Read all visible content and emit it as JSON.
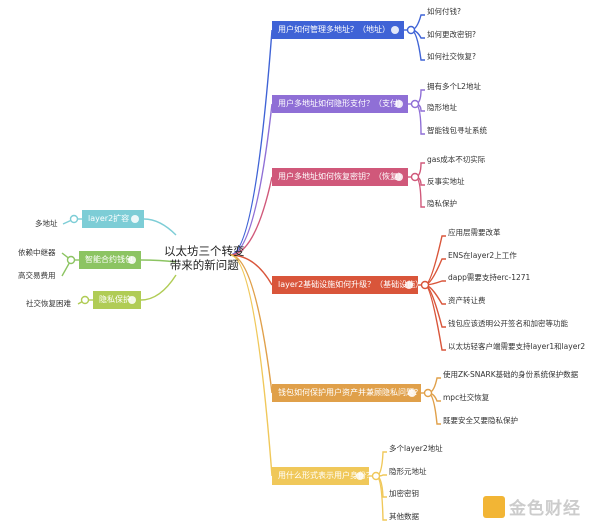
{
  "center": {
    "line1": "以太坊三个转变",
    "line2": "带来的新问题"
  },
  "right": [
    {
      "label": "用户如何管理多地址？（地址）",
      "color": "#3f63d6",
      "children": [
        "如何付钱?",
        "如何更改密钥?",
        "如何社交恢复?"
      ]
    },
    {
      "label": "用户多地址如何隐形支付？（支付）",
      "color": "#8f6fd6",
      "children": [
        "拥有多个L2地址",
        "隐形地址",
        "智能钱包寻址系统"
      ]
    },
    {
      "label": "用户多地址如何恢复密钥？（恢复）",
      "color": "#d0587a",
      "children": [
        "gas成本不切实际",
        "反事实地址",
        "隐私保护"
      ]
    },
    {
      "label": "layer2基础设施如何升级？（基础设施）",
      "color": "#d9553a",
      "children": [
        "应用层需要改革",
        "ENS在layer2上工作",
        "dapp需要支持erc-1271",
        "资产转让费",
        "钱包应该透明公开签名和加密等功能",
        "以太坊轻客户端需要支持layer1和layer2"
      ]
    },
    {
      "label": "钱包如何保护用户资产并兼顾隐私问题？",
      "color": "#e0a04a",
      "children": [
        "使用ZK-SNARK基础的身份系统保护数据",
        "mpc社交恢复",
        "既要安全又要隐私保护"
      ]
    },
    {
      "label": "用什么形式表示用户身份？",
      "color": "#f0c85a",
      "children": [
        "多个layer2地址",
        "隐形元地址",
        "加密密钥",
        "其他数据"
      ]
    }
  ],
  "left": [
    {
      "label": "layer2扩容",
      "color": "#7dcdd6",
      "children": [
        "多地址"
      ]
    },
    {
      "label": "智能合约钱包",
      "color": "#8cc462",
      "children": [
        "依赖中继器",
        "高交易费用"
      ]
    },
    {
      "label": "隐私保护",
      "color": "#b0cc55",
      "children": [
        "社交恢复困难"
      ]
    }
  ],
  "watermark": "金色财经"
}
